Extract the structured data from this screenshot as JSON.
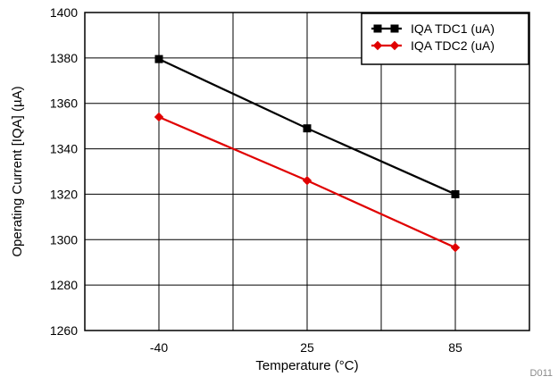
{
  "chart_data": {
    "type": "line",
    "categories": [
      "-40",
      "25",
      "85"
    ],
    "series": [
      {
        "name": "IQA TDC1 (uA)",
        "values": [
          1379.5,
          1349,
          1320
        ],
        "color": "#000000",
        "marker": "square"
      },
      {
        "name": "IQA TDC2 (uA)",
        "values": [
          1354,
          1326,
          1296.5
        ],
        "color": "#e00000",
        "marker": "diamond"
      }
    ],
    "title": "",
    "xlabel": "Temperature (°C)",
    "ylabel": "Operating Current [IQA] (µA)",
    "ylim": [
      1260,
      1400
    ],
    "yticks": [
      1260,
      1280,
      1300,
      1320,
      1340,
      1360,
      1380,
      1400
    ],
    "grid": true,
    "legend_position": "top-right"
  },
  "watermark": "D011"
}
